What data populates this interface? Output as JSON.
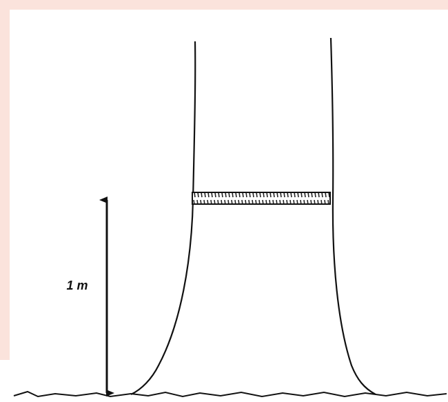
{
  "diagram": {
    "height_label": "1 m"
  }
}
